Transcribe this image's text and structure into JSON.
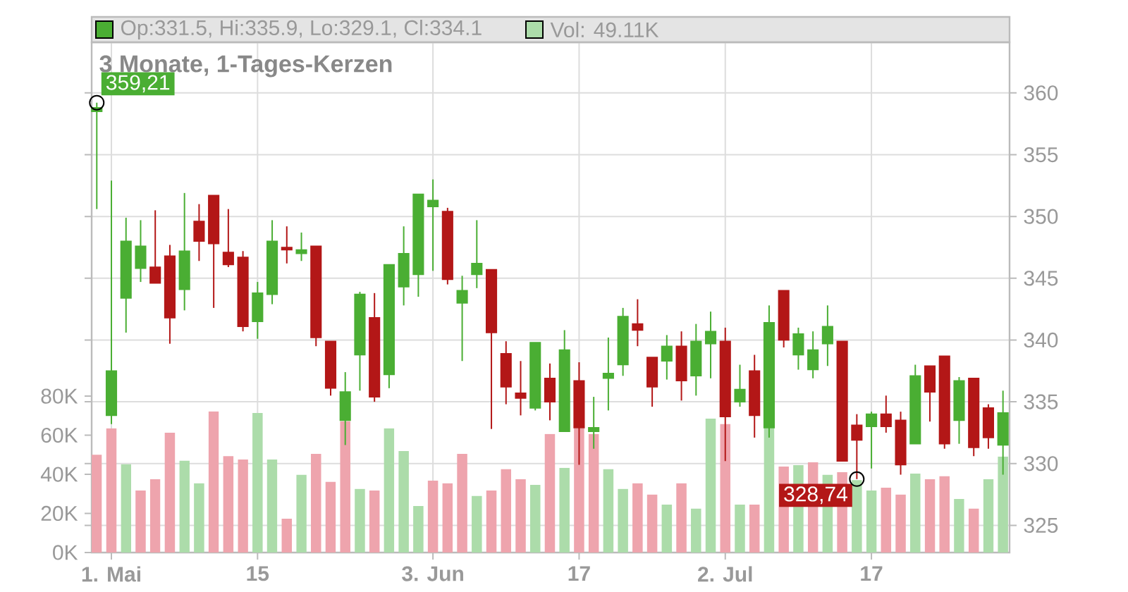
{
  "chart_data": {
    "type": "candlestick",
    "title": "3 Monate, 1-Tages-Kerzen",
    "categories": [
      null,
      "1. Mai",
      null,
      null,
      null,
      null,
      null,
      null,
      null,
      null,
      null,
      "15",
      null,
      null,
      null,
      null,
      null,
      null,
      null,
      null,
      null,
      null,
      null,
      "3. Jun",
      null,
      null,
      null,
      null,
      null,
      null,
      null,
      null,
      null,
      "17",
      null,
      null,
      null,
      null,
      null,
      null,
      null,
      null,
      null,
      "2. Jul",
      null,
      null,
      null,
      null,
      null,
      null,
      null,
      null,
      null,
      "17",
      null,
      null,
      null,
      null,
      null,
      null,
      null,
      null,
      null
    ],
    "series": [
      {
        "type": "candlestick",
        "ohlc": [
          [
            358.5,
            359.21,
            350.6,
            358.8
          ],
          [
            333.9,
            352.9,
            333.2,
            337.5
          ],
          [
            343.4,
            349.9,
            340.6,
            348.0
          ],
          [
            345.8,
            349.7,
            344.7,
            347.6
          ],
          [
            345.9,
            350.5,
            344.6,
            344.6
          ],
          [
            346.8,
            347.7,
            339.7,
            341.8
          ],
          [
            344.1,
            351.9,
            342.4,
            347.2
          ],
          [
            349.6,
            351.0,
            346.4,
            348.0
          ],
          [
            351.7,
            351.7,
            342.6,
            347.8
          ],
          [
            347.1,
            350.6,
            345.9,
            346.1
          ],
          [
            346.7,
            347.2,
            340.7,
            341.1
          ],
          [
            341.5,
            344.7,
            340.1,
            343.8
          ],
          [
            343.7,
            349.7,
            342.9,
            348.0
          ],
          [
            347.5,
            349.2,
            346.2,
            347.3
          ],
          [
            347.0,
            348.7,
            346.4,
            347.3
          ],
          [
            347.6,
            347.6,
            339.5,
            340.2
          ],
          [
            339.9,
            339.9,
            335.5,
            336.1
          ],
          [
            333.5,
            337.4,
            331.5,
            335.8
          ],
          [
            338.8,
            343.9,
            335.9,
            343.7
          ],
          [
            341.8,
            343.8,
            335.0,
            335.4
          ],
          [
            337.2,
            346.1,
            336.1,
            346.1
          ],
          [
            344.3,
            349.2,
            342.8,
            347.0
          ],
          [
            345.3,
            351.8,
            343.5,
            351.8
          ],
          [
            350.8,
            353.0,
            345.6,
            351.3
          ],
          [
            350.4,
            350.7,
            344.5,
            344.9
          ],
          [
            343.0,
            345.2,
            338.3,
            344.0
          ],
          [
            345.3,
            349.7,
            344.2,
            346.2
          ],
          [
            345.7,
            345.7,
            332.8,
            340.6
          ],
          [
            338.9,
            339.9,
            334.8,
            336.2
          ],
          [
            335.7,
            338.3,
            333.9,
            335.3
          ],
          [
            334.5,
            339.8,
            334.3,
            339.8
          ],
          [
            336.9,
            338.1,
            333.5,
            335.0
          ],
          [
            332.6,
            340.8,
            332.6,
            339.2
          ],
          [
            336.7,
            338.2,
            329.9,
            332.9
          ],
          [
            332.6,
            335.4,
            331.2,
            332.9
          ],
          [
            336.9,
            340.2,
            334.3,
            337.3
          ],
          [
            338.0,
            342.6,
            337.1,
            341.9
          ],
          [
            341.3,
            343.3,
            339.5,
            340.8
          ],
          [
            338.6,
            338.6,
            334.6,
            336.2
          ],
          [
            338.3,
            340.4,
            336.8,
            339.5
          ],
          [
            339.5,
            340.7,
            335.1,
            336.7
          ],
          [
            337.1,
            341.3,
            335.5,
            339.9
          ],
          [
            339.7,
            342.3,
            336.9,
            340.7
          ],
          [
            339.9,
            341.0,
            330.2,
            333.8
          ],
          [
            335.0,
            338.0,
            334.6,
            336.0
          ],
          [
            337.5,
            338.8,
            332.1,
            333.9
          ],
          [
            332.9,
            342.8,
            332.1,
            341.4
          ],
          [
            344.0,
            344.0,
            339.4,
            340.0
          ],
          [
            338.8,
            341.0,
            337.6,
            340.5
          ],
          [
            337.6,
            340.7,
            336.9,
            339.2
          ],
          [
            339.7,
            342.8,
            337.9,
            341.1
          ],
          [
            339.9,
            339.9,
            330.2,
            330.2
          ],
          [
            333.1,
            334.0,
            328.74,
            331.9
          ],
          [
            333.0,
            334.2,
            329.6,
            334.0
          ],
          [
            334.0,
            335.5,
            332.5,
            333.0
          ],
          [
            333.5,
            334.2,
            329.1,
            329.9
          ],
          [
            331.6,
            338.0,
            331.6,
            337.1
          ],
          [
            337.9,
            337.9,
            333.4,
            335.8
          ],
          [
            338.7,
            338.7,
            331.2,
            331.6
          ],
          [
            333.5,
            337.0,
            331.6,
            336.7
          ],
          [
            336.9,
            336.9,
            330.6,
            331.3
          ],
          [
            334.5,
            334.8,
            331.2,
            332.1
          ],
          [
            331.5,
            335.9,
            329.1,
            334.1
          ]
        ],
        "colors": [
          "#4aae33",
          "#4aae33",
          "#4aae33",
          "#4aae33",
          "#b31717",
          "#b31717",
          "#4aae33",
          "#b31717",
          "#b31717",
          "#b31717",
          "#b31717",
          "#4aae33",
          "#4aae33",
          "#b31717",
          "#4aae33",
          "#b31717",
          "#b31717",
          "#4aae33",
          "#4aae33",
          "#b31717",
          "#4aae33",
          "#4aae33",
          "#4aae33",
          "#4aae33",
          "#b31717",
          "#4aae33",
          "#4aae33",
          "#b31717",
          "#b31717",
          "#b31717",
          "#4aae33",
          "#b31717",
          "#4aae33",
          "#b31717",
          "#4aae33",
          "#4aae33",
          "#4aae33",
          "#b31717",
          "#b31717",
          "#4aae33",
          "#b31717",
          "#4aae33",
          "#4aae33",
          "#b31717",
          "#4aae33",
          "#b31717",
          "#4aae33",
          "#b31717",
          "#4aae33",
          "#4aae33",
          "#4aae33",
          "#b31717",
          "#b31717",
          "#4aae33",
          "#b31717",
          "#b31717",
          "#4aae33",
          "#b31717",
          "#b31717",
          "#4aae33",
          "#b31717",
          "#b31717",
          "#4aae33"
        ]
      },
      {
        "type": "bar",
        "axis": "y2",
        "values": [
          50.0,
          63.5,
          45.2,
          31.7,
          37.5,
          61.3,
          46.9,
          35.4,
          72.2,
          49.3,
          47.6,
          71.4,
          47.6,
          17.3,
          39.7,
          50.5,
          36.1,
          67.1,
          32.5,
          31.7,
          63.5,
          51.9,
          23.8,
          36.8,
          35.4,
          50.5,
          28.9,
          31.7,
          42.6,
          37.5,
          34.6,
          60.6,
          43.3,
          63.5,
          60.6,
          42.6,
          32.5,
          35.4,
          29.6,
          24.5,
          35.4,
          22.4,
          68.5,
          65.7,
          24.5,
          24.5,
          63.7,
          44.0,
          44.7,
          46.2,
          39.7,
          41.1,
          37.0,
          31.7,
          33.2,
          29.6,
          40.4,
          37.5,
          39.0,
          27.4,
          22.4,
          37.5,
          49.11
        ],
        "colors": [
          "#eea4ad",
          "#eea4ad",
          "#acdcaa",
          "#eea4ad",
          "#eea4ad",
          "#eea4ad",
          "#acdcaa",
          "#acdcaa",
          "#eea4ad",
          "#eea4ad",
          "#eea4ad",
          "#acdcaa",
          "#acdcaa",
          "#eea4ad",
          "#acdcaa",
          "#eea4ad",
          "#eea4ad",
          "#eea4ad",
          "#acdcaa",
          "#eea4ad",
          "#acdcaa",
          "#acdcaa",
          "#acdcaa",
          "#eea4ad",
          "#eea4ad",
          "#eea4ad",
          "#acdcaa",
          "#eea4ad",
          "#eea4ad",
          "#eea4ad",
          "#acdcaa",
          "#eea4ad",
          "#acdcaa",
          "#eea4ad",
          "#eea4ad",
          "#acdcaa",
          "#acdcaa",
          "#eea4ad",
          "#eea4ad",
          "#acdcaa",
          "#eea4ad",
          "#acdcaa",
          "#acdcaa",
          "#eea4ad",
          "#acdcaa",
          "#eea4ad",
          "#acdcaa",
          "#eea4ad",
          "#acdcaa",
          "#eea4ad",
          "#acdcaa",
          "#eea4ad",
          "#acdcaa",
          "#acdcaa",
          "#eea4ad",
          "#eea4ad",
          "#acdcaa",
          "#eea4ad",
          "#eea4ad",
          "#acdcaa",
          "#eea4ad",
          "#acdcaa",
          "#acdcaa"
        ]
      }
    ],
    "ylim": [
      322.8,
      364.1
    ],
    "yticks": [
      325,
      330,
      335,
      340,
      345,
      350,
      355,
      360
    ],
    "y2lim": [
      0,
      261
    ],
    "y2ticks": [
      {
        "value": 0,
        "label": "0K"
      },
      {
        "value": 20,
        "label": "20K"
      },
      {
        "value": 40,
        "label": "40K"
      },
      {
        "value": 60,
        "label": "60K"
      },
      {
        "value": 80,
        "label": "80K"
      }
    ],
    "grid": true,
    "annotations": [
      "Op:331.5, Hi:335.9, Lo:329.1, Cl:334.1",
      "Vol: 49.11K",
      "359,21",
      {
        "text": "328,74",
        "y": 328.74
      }
    ]
  }
}
